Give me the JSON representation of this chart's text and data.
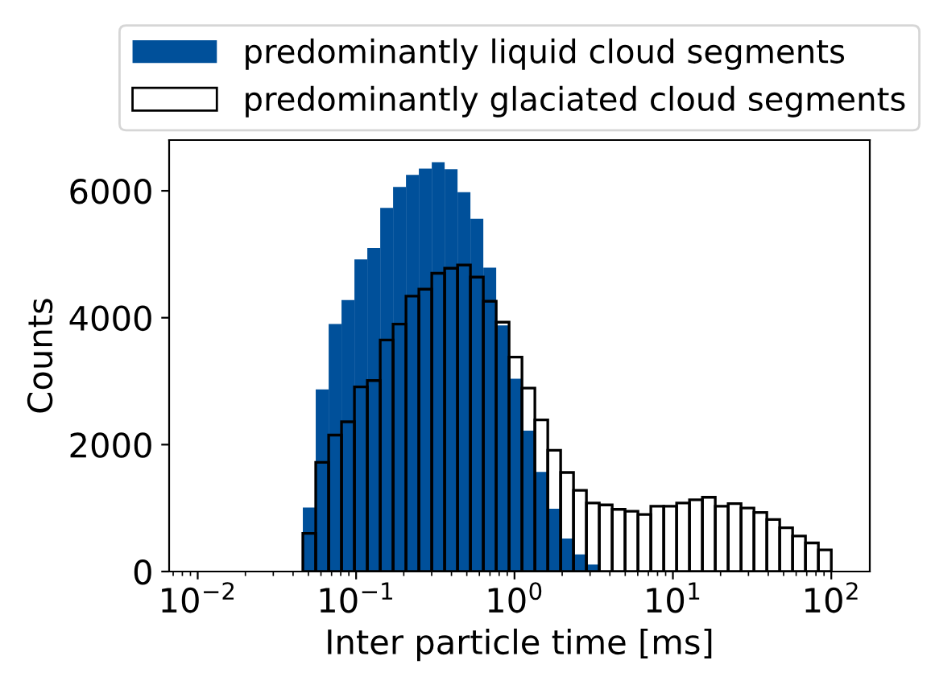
{
  "chart_data": {
    "type": "histogram",
    "xlabel": "Inter particle time [ms]",
    "ylabel": "Counts",
    "bins": [
      0.0461,
      0.0556,
      0.0671,
      0.0809,
      0.0976,
      0.1177,
      0.142,
      0.1712,
      0.2065,
      0.249,
      0.3004,
      0.3622,
      0.4369,
      0.5269,
      0.6355,
      0.7665,
      0.9243,
      1.1148,
      1.3446,
      1.6218,
      1.9556,
      2.3585,
      2.8445,
      3.4303,
      4.1372,
      4.9888,
      6.0173,
      7.2557,
      8.752,
      10.556,
      12.73,
      15.354,
      18.513,
      22.33,
      26.932,
      32.48,
      39.17,
      47.24,
      56.98,
      68.72,
      82.88,
      100
    ],
    "series": [
      {
        "name": "predominantly liquid cloud segments",
        "color": "#00509a",
        "values": [
          1010,
          2870,
          3900,
          4280,
          4920,
          5100,
          5730,
          6060,
          6250,
          6350,
          6450,
          6340,
          5980,
          5560,
          4790,
          3880,
          3040,
          2220,
          1570,
          990,
          520,
          270,
          110,
          null,
          null,
          0,
          0,
          0,
          0,
          0,
          0,
          0,
          0,
          0,
          0,
          0,
          0,
          0,
          0,
          0,
          0
        ]
      },
      {
        "name": "predominantly glaciated cloud segments",
        "color": "#000000",
        "values": [
          600,
          1720,
          2150,
          2360,
          2910,
          3010,
          3650,
          3900,
          4340,
          4450,
          4700,
          4780,
          4830,
          4640,
          4260,
          3930,
          3380,
          2890,
          2390,
          1910,
          1560,
          1280,
          1080,
          1050,
          980,
          950,
          900,
          1030,
          1030,
          1080,
          1130,
          1170,
          1030,
          1070,
          1000,
          930,
          820,
          690,
          560,
          450,
          340
        ]
      }
    ],
    "log": "x",
    "xlim": [
      0.0066,
      175
    ],
    "xticks": [
      {
        "value": 0.01,
        "label": "10$^{−2}$"
      },
      {
        "value": 0.1,
        "label": "10$^{−1}$"
      },
      {
        "value": 1,
        "label": "10$^{0}$"
      },
      {
        "value": 10,
        "label": "10$^{1}$"
      },
      {
        "value": 100,
        "label": "10$^{2}$"
      }
    ],
    "ylim": [
      0,
      6800
    ],
    "yticks": [
      0,
      2000,
      4000,
      6000
    ],
    "grid": false,
    "legend": "top"
  }
}
